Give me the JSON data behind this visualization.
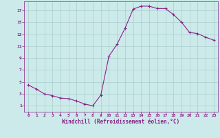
{
  "x": [
    0,
    1,
    2,
    3,
    4,
    5,
    6,
    7,
    8,
    9,
    10,
    11,
    12,
    13,
    14,
    15,
    16,
    17,
    18,
    19,
    20,
    21,
    22,
    23
  ],
  "y": [
    4.5,
    3.8,
    3.0,
    2.7,
    2.3,
    2.2,
    1.8,
    1.3,
    1.0,
    2.8,
    9.3,
    11.3,
    14.0,
    17.2,
    17.7,
    17.7,
    17.3,
    17.3,
    16.3,
    15.0,
    13.3,
    13.1,
    12.5,
    12.0
  ],
  "line_color": "#882288",
  "marker": "+",
  "marker_size": 3,
  "marker_linewidth": 0.8,
  "bg_color": "#cceaea",
  "grid_color": "#aacccc",
  "xlabel": "Windchill (Refroidissement éolien,°C)",
  "xlabel_color": "#882288",
  "tick_color": "#882288",
  "xlim": [
    -0.5,
    23.5
  ],
  "ylim": [
    0,
    18.5
  ],
  "xticks": [
    0,
    1,
    2,
    3,
    4,
    5,
    6,
    7,
    8,
    9,
    10,
    11,
    12,
    13,
    14,
    15,
    16,
    17,
    18,
    19,
    20,
    21,
    22,
    23
  ],
  "yticks": [
    1,
    3,
    5,
    7,
    9,
    11,
    13,
    15,
    17
  ],
  "tick_fontsize": 4.5,
  "xlabel_fontsize": 5.5,
  "line_width": 0.8
}
